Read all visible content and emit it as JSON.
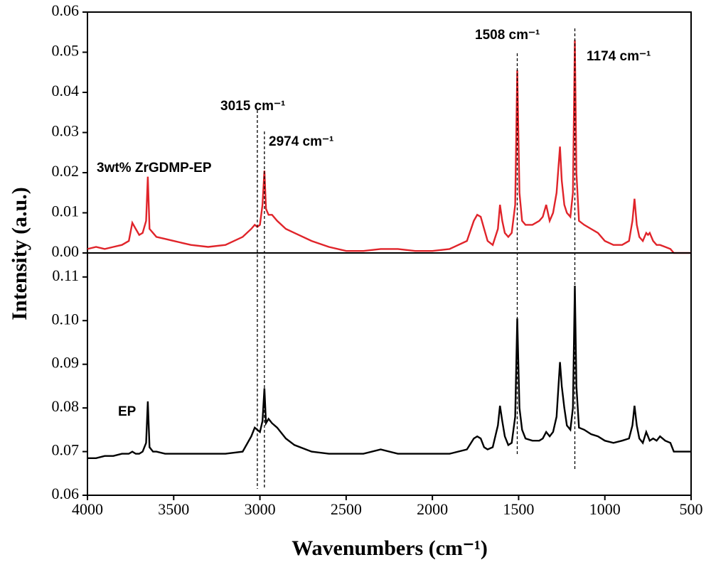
{
  "chart_data": [
    {
      "type": "line",
      "ylabel": "Intensity (a.u.)",
      "x": [
        4000,
        3950,
        3900,
        3850,
        3800,
        3760,
        3740,
        3720,
        3700,
        3680,
        3660,
        3650,
        3640,
        3620,
        3600,
        3550,
        3500,
        3450,
        3400,
        3300,
        3200,
        3100,
        3050,
        3030,
        3015,
        3000,
        2985,
        2974,
        2965,
        2950,
        2930,
        2900,
        2850,
        2800,
        2700,
        2600,
        2500,
        2400,
        2300,
        2200,
        2100,
        2000,
        1900,
        1800,
        1760,
        1740,
        1720,
        1700,
        1680,
        1650,
        1620,
        1608,
        1595,
        1580,
        1560,
        1540,
        1520,
        1508,
        1495,
        1480,
        1460,
        1420,
        1380,
        1360,
        1340,
        1320,
        1300,
        1280,
        1260,
        1250,
        1235,
        1220,
        1200,
        1185,
        1174,
        1165,
        1150,
        1120,
        1080,
        1040,
        1000,
        950,
        900,
        860,
        840,
        828,
        815,
        800,
        780,
        760,
        750,
        740,
        720,
        700,
        680,
        650,
        620,
        600,
        550,
        500
      ],
      "series": [
        {
          "name": "3wt% ZrGDMP-EP",
          "color": "#e0242a",
          "values": [
            0.001,
            0.0015,
            0.001,
            0.0015,
            0.002,
            0.003,
            0.0075,
            0.006,
            0.0045,
            0.005,
            0.008,
            0.019,
            0.006,
            0.005,
            0.004,
            0.0035,
            0.003,
            0.0025,
            0.002,
            0.0015,
            0.002,
            0.004,
            0.006,
            0.007,
            0.0065,
            0.007,
            0.012,
            0.0205,
            0.011,
            0.0095,
            0.0095,
            0.008,
            0.006,
            0.005,
            0.003,
            0.0015,
            0.0005,
            0.0005,
            0.001,
            0.001,
            0.0005,
            0.0005,
            0.001,
            0.003,
            0.008,
            0.0095,
            0.009,
            0.006,
            0.003,
            0.002,
            0.006,
            0.012,
            0.008,
            0.005,
            0.004,
            0.005,
            0.012,
            0.0455,
            0.015,
            0.008,
            0.007,
            0.007,
            0.008,
            0.009,
            0.012,
            0.008,
            0.01,
            0.015,
            0.0265,
            0.018,
            0.012,
            0.01,
            0.009,
            0.015,
            0.053,
            0.02,
            0.008,
            0.007,
            0.006,
            0.005,
            0.003,
            0.002,
            0.002,
            0.003,
            0.008,
            0.0135,
            0.007,
            0.004,
            0.003,
            0.005,
            0.0045,
            0.005,
            0.003,
            0.002,
            0.002,
            0.0015,
            0.001,
            0,
            0,
            0
          ]
        }
      ],
      "xlim": [
        4000,
        500
      ],
      "ylim": [
        0,
        0.06
      ],
      "yticks": [
        {
          "value": 0,
          "label": "0.00"
        },
        0.01,
        0.02,
        0.03,
        0.04,
        0.05,
        0.06
      ],
      "annotations": [
        {
          "text": "3015 cm⁻¹",
          "x": 3015
        },
        {
          "text": "2974 cm⁻¹",
          "x": 2974
        },
        {
          "text": "1508 cm⁻¹",
          "x": 1508
        },
        {
          "text": "1174 cm⁻¹",
          "x": 1174
        }
      ]
    },
    {
      "type": "line",
      "xlabel": "Wavenumbers (cm⁻¹)",
      "x": [
        4000,
        3950,
        3900,
        3850,
        3800,
        3760,
        3740,
        3720,
        3700,
        3680,
        3660,
        3650,
        3640,
        3620,
        3600,
        3550,
        3500,
        3450,
        3400,
        3300,
        3200,
        3100,
        3050,
        3030,
        3015,
        3000,
        2985,
        2974,
        2965,
        2950,
        2930,
        2900,
        2850,
        2800,
        2700,
        2600,
        2500,
        2400,
        2300,
        2200,
        2100,
        2000,
        1900,
        1800,
        1760,
        1740,
        1720,
        1700,
        1680,
        1650,
        1620,
        1608,
        1595,
        1580,
        1560,
        1540,
        1520,
        1508,
        1495,
        1480,
        1460,
        1420,
        1380,
        1360,
        1340,
        1320,
        1300,
        1280,
        1260,
        1250,
        1235,
        1220,
        1200,
        1185,
        1174,
        1165,
        1150,
        1120,
        1080,
        1040,
        1000,
        950,
        900,
        860,
        840,
        828,
        815,
        800,
        780,
        760,
        750,
        740,
        720,
        700,
        680,
        650,
        620,
        600,
        550,
        500
      ],
      "series": [
        {
          "name": "EP",
          "color": "#000000",
          "values": [
            0.0685,
            0.0685,
            0.069,
            0.069,
            0.0695,
            0.0695,
            0.07,
            0.0695,
            0.0695,
            0.07,
            0.072,
            0.0815,
            0.071,
            0.07,
            0.07,
            0.0695,
            0.0695,
            0.0695,
            0.0695,
            0.0695,
            0.0695,
            0.07,
            0.0735,
            0.0755,
            0.075,
            0.0745,
            0.077,
            0.0845,
            0.0765,
            0.0775,
            0.0765,
            0.0755,
            0.073,
            0.0715,
            0.07,
            0.0695,
            0.0695,
            0.0695,
            0.0705,
            0.0695,
            0.0695,
            0.0695,
            0.0695,
            0.0705,
            0.073,
            0.0735,
            0.073,
            0.071,
            0.0705,
            0.071,
            0.076,
            0.0805,
            0.077,
            0.0735,
            0.0715,
            0.072,
            0.078,
            0.1005,
            0.08,
            0.075,
            0.073,
            0.0725,
            0.0725,
            0.073,
            0.0745,
            0.0735,
            0.0745,
            0.078,
            0.0905,
            0.085,
            0.08,
            0.076,
            0.075,
            0.08,
            0.108,
            0.085,
            0.0755,
            0.075,
            0.074,
            0.0735,
            0.0725,
            0.072,
            0.0725,
            0.073,
            0.076,
            0.0805,
            0.076,
            0.073,
            0.072,
            0.0745,
            0.0735,
            0.0725,
            0.073,
            0.0725,
            0.0735,
            0.0725,
            0.072,
            0.07,
            0.07,
            0.07
          ]
        }
      ],
      "xlim": [
        4000,
        500
      ],
      "xticks": [
        4000,
        3500,
        3000,
        2500,
        2000,
        1500,
        1000,
        500
      ],
      "ylim": [
        0.06,
        0.1155
      ],
      "yticks": [
        0.06,
        0.07,
        0.08,
        0.09,
        {
          "value": 0.1,
          "label": "0.10"
        },
        0.11
      ]
    }
  ]
}
